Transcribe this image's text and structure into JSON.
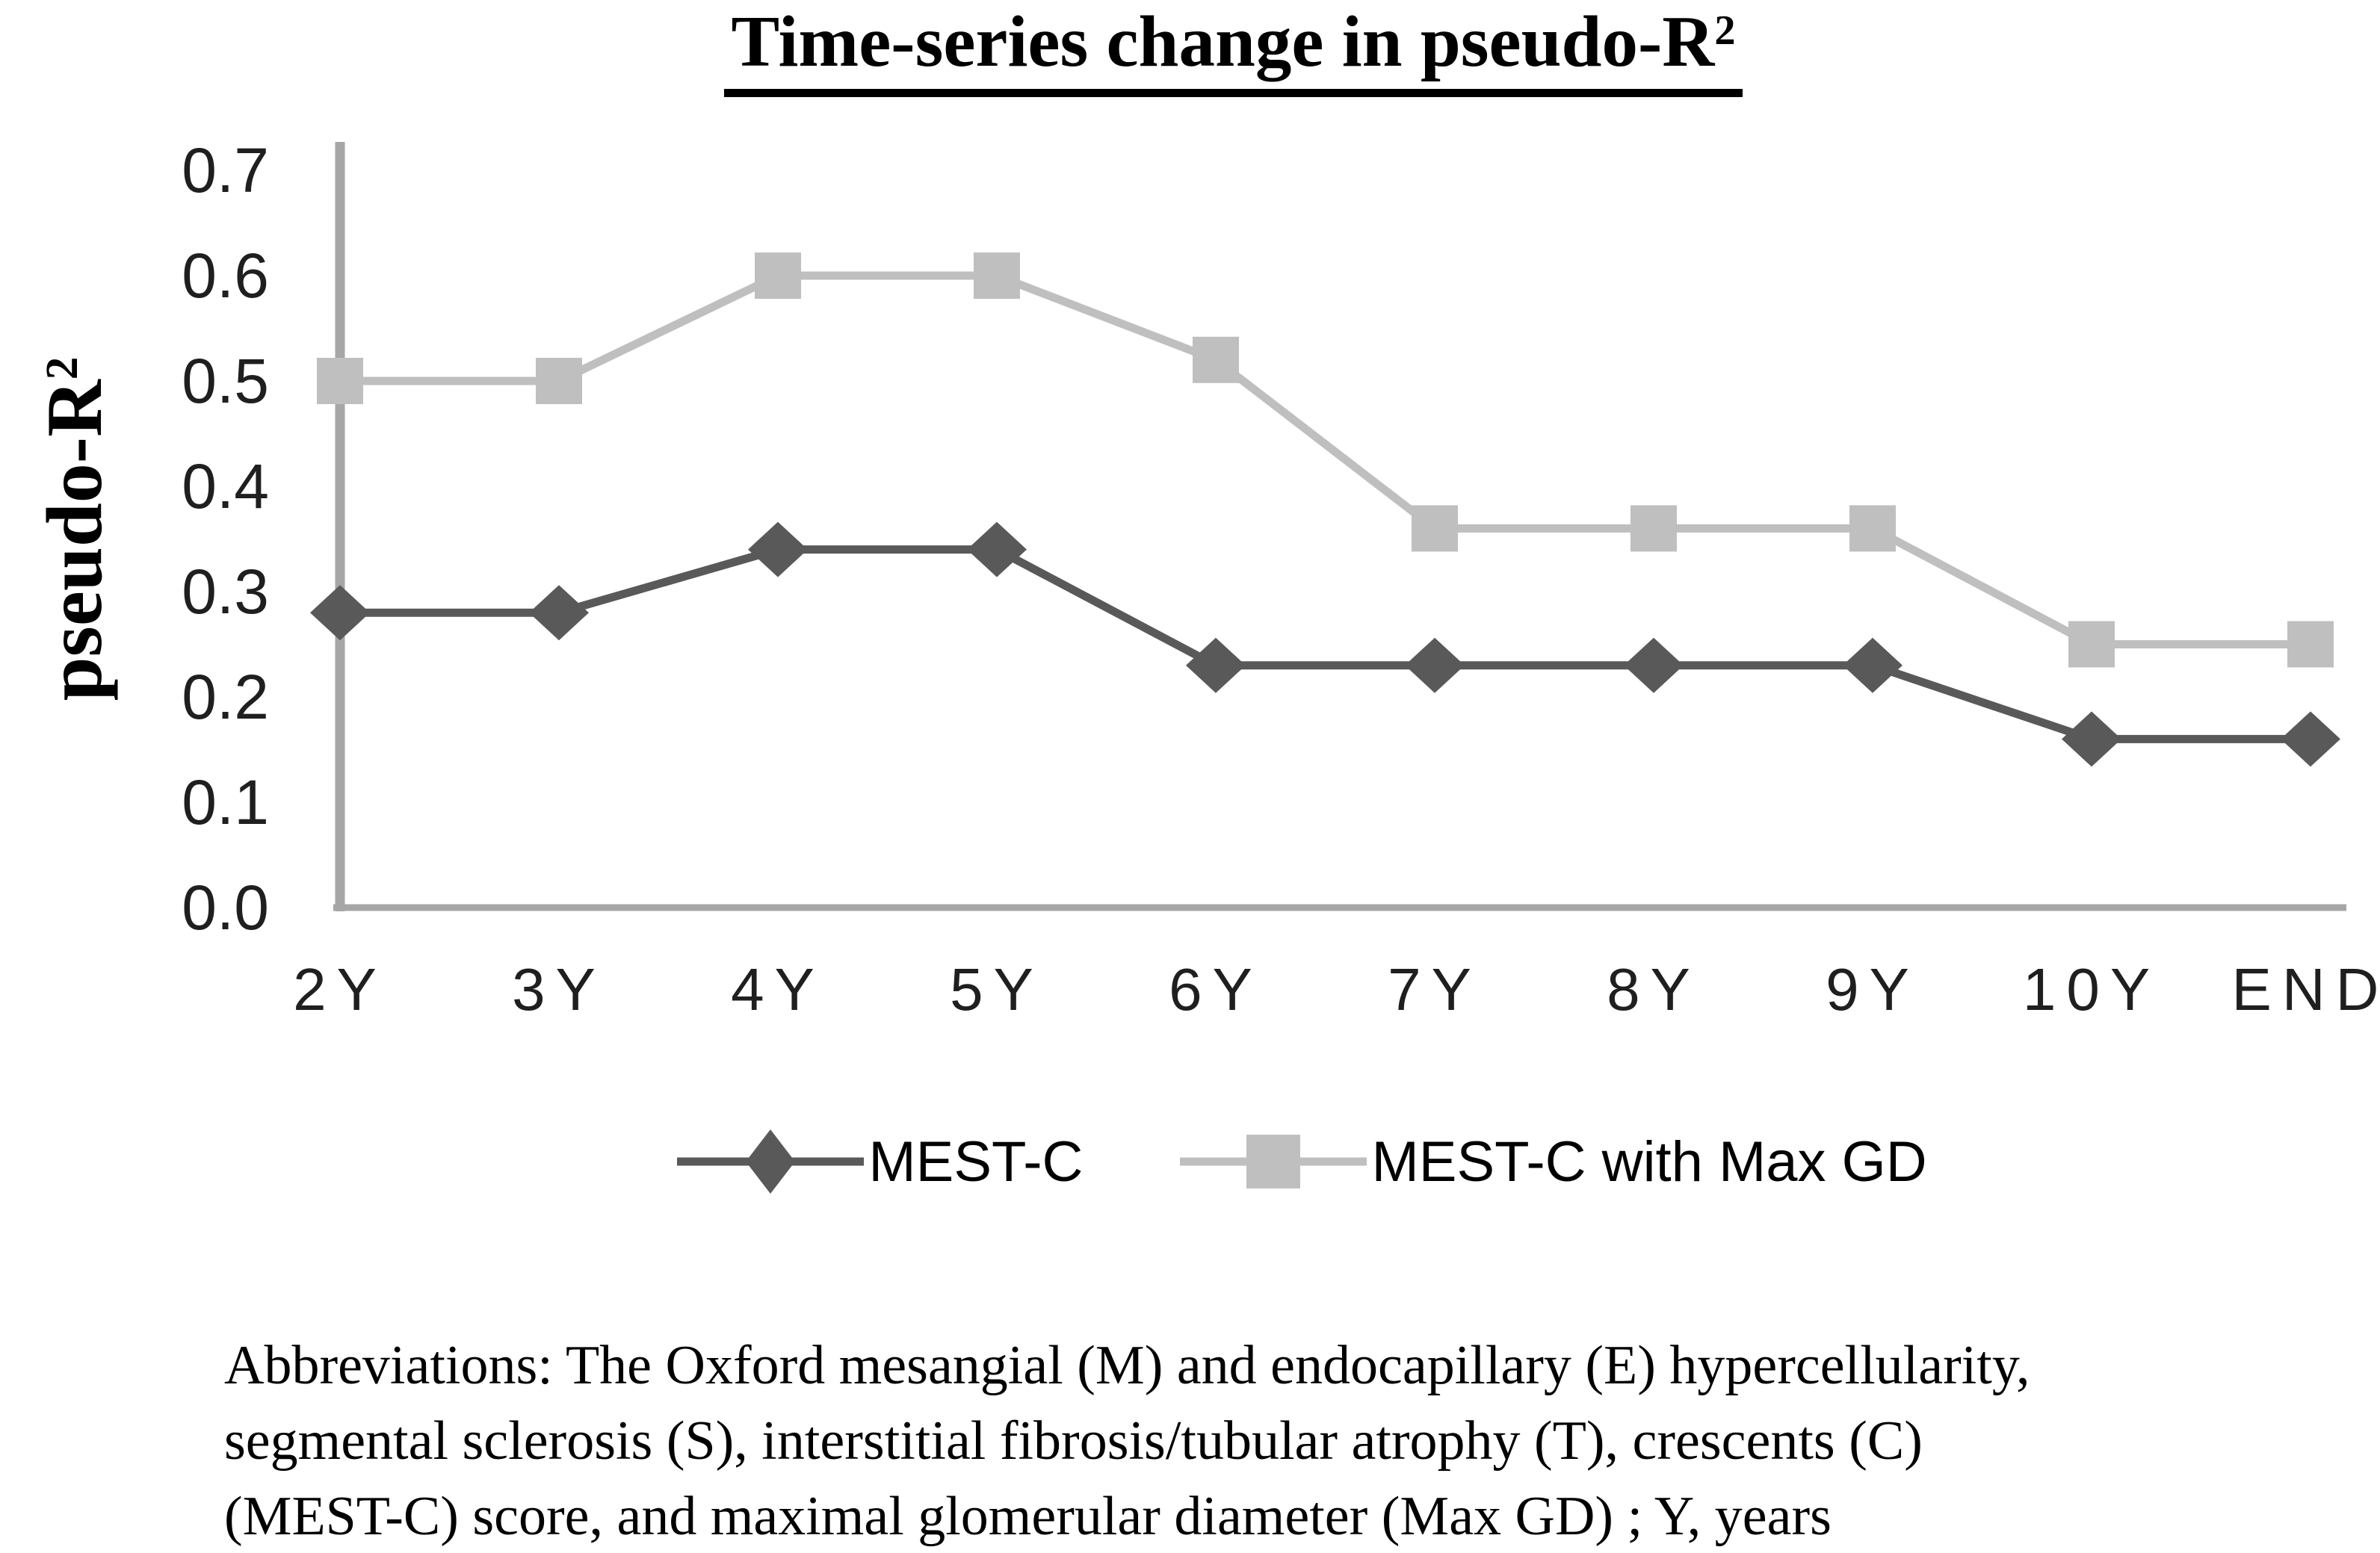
{
  "title": {
    "main": "Time-series change in pseudo-R",
    "sup": "2"
  },
  "ylabel": {
    "main": "pseudo-R",
    "sup": "2"
  },
  "legend": {
    "items": [
      {
        "label": "MEST-C",
        "marker": "diamond",
        "color": "#595959"
      },
      {
        "label": "MEST-C with Max GD",
        "marker": "square",
        "color": "#bfbfbf"
      }
    ]
  },
  "footnote": {
    "lines": [
      "Abbreviations: The Oxford mesangial (M) and endocapillary (E) hypercellularity,",
      "segmental sclerosis (S), interstitial fibrosis/tubular atrophy (T), crescents (C)",
      "(MEST-C) score, and maximal glomerular diameter (Max GD) ; Y, years"
    ]
  },
  "chart_data": {
    "type": "line",
    "title": "Time-series change in pseudo-R²",
    "xlabel": "",
    "ylabel": "pseudo-R²",
    "categories": [
      "2Y",
      "3Y",
      "4Y",
      "5Y",
      "6Y",
      "7Y",
      "8Y",
      "9Y",
      "10Y",
      "END"
    ],
    "series": [
      {
        "name": "MEST-C",
        "marker": "diamond",
        "color": "#595959",
        "values": [
          0.28,
          0.28,
          0.34,
          0.34,
          0.23,
          0.23,
          0.23,
          0.23,
          0.16,
          0.16
        ]
      },
      {
        "name": "MEST-C with Max GD",
        "marker": "square",
        "color": "#bfbfbf",
        "values": [
          0.5,
          0.5,
          0.6,
          0.6,
          0.52,
          0.36,
          0.36,
          0.36,
          0.25,
          0.25
        ]
      }
    ],
    "ylim": [
      0.0,
      0.7
    ],
    "yticks": [
      "0.0",
      "0.1",
      "0.2",
      "0.3",
      "0.4",
      "0.5",
      "0.6",
      "0.7"
    ],
    "grid": false,
    "legend_position": "bottom",
    "axis_color": "#a6a6a6"
  }
}
